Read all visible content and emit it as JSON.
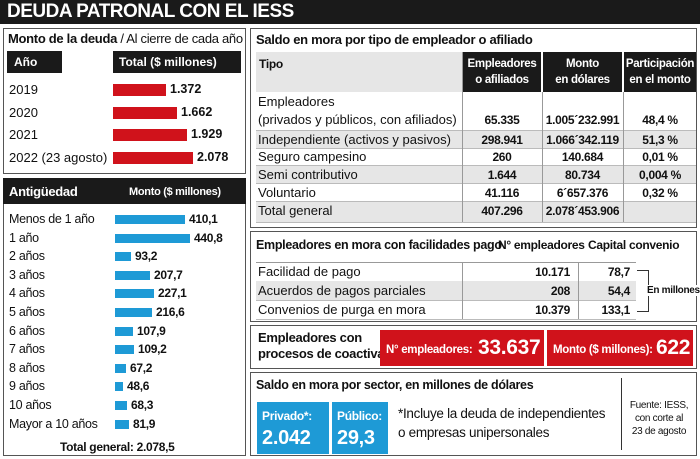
{
  "title": "DEUDA PATRONAL CON EL IESS",
  "monto": {
    "title_bold": "Monto de la deuda",
    "title_rest": " / Al cierre de cada año",
    "col_year": "Año",
    "col_total": "Total  ($ millones)",
    "rows": [
      {
        "label": "2019",
        "value": 1.372,
        "display": "1.372"
      },
      {
        "label": "2020",
        "value": 1.662,
        "display": "1.662"
      },
      {
        "label": "2021",
        "value": 1.929,
        "display": "1.929"
      },
      {
        "label": "2022 (23 agosto)",
        "value": 2.078,
        "display": "2.078"
      }
    ]
  },
  "antiguedad": {
    "col_label": "Antigüedad",
    "col_value": "Monto ($ millones)",
    "rows": [
      {
        "label": "Menos de 1 año",
        "value": 410.1,
        "display": "410,1"
      },
      {
        "label": "1 año",
        "value": 440.8,
        "display": "440,8"
      },
      {
        "label": "2 años",
        "value": 93.2,
        "display": "93,2"
      },
      {
        "label": "3 años",
        "value": 207.7,
        "display": "207,7"
      },
      {
        "label": "4 años",
        "value": 227.1,
        "display": "227,1"
      },
      {
        "label": "5 años",
        "value": 216.6,
        "display": "216,6"
      },
      {
        "label": "6 años",
        "value": 107.9,
        "display": "107,9"
      },
      {
        "label": "7 años",
        "value": 109.2,
        "display": "109,2"
      },
      {
        "label": "8 años",
        "value": 67.2,
        "display": "67,2"
      },
      {
        "label": "9 años",
        "value": 48.6,
        "display": "48,6"
      },
      {
        "label": "10 años",
        "value": 68.3,
        "display": "68,3"
      },
      {
        "label": "Mayor a 10 años",
        "value": 81.9,
        "display": "81,9"
      }
    ],
    "total": "Total general: 2.078,5"
  },
  "mora_tipo": {
    "title": "Saldo en mora por tipo de empleador o afiliado",
    "col_tipo": "Tipo",
    "col_emp": [
      "Empleadores",
      "o afiliados"
    ],
    "col_monto": [
      "Monto",
      "en dólares"
    ],
    "col_part": [
      "Participación",
      "en el monto"
    ],
    "rows": [
      {
        "label": "Empleadores",
        "label2": "(privados y públicos, con afiliados)",
        "emp": "65.335",
        "monto": "1.005´232.991",
        "part": "48,4 %"
      },
      {
        "label": "Independiente (activos y pasivos)",
        "emp": "298.941",
        "monto": "1.066´342.119",
        "part": "51,3 %"
      },
      {
        "label": "Seguro campesino",
        "emp": "260",
        "monto": "140.684",
        "part": "0,01 %"
      },
      {
        "label": "Semi contributivo",
        "emp": "1.644",
        "monto": "80.734",
        "part": "0,004 %"
      },
      {
        "label": "Voluntario",
        "emp": "41.116",
        "monto": "6´657.376",
        "part": "0,32 %"
      },
      {
        "label": "Total general",
        "emp": "407.296",
        "monto": "2.078´453.906",
        "part": ""
      }
    ]
  },
  "facilidades": {
    "title": "Empleadores en mora con facilidades pago",
    "col_emp": "N° empleadores",
    "col_cap": "Capital convenio",
    "rows": [
      {
        "label": "Facilidad de pago",
        "emp": "10.171",
        "cap": "78,7"
      },
      {
        "label": "Acuerdos de pagos parciales",
        "emp": "208",
        "cap": "54,4"
      },
      {
        "label": "Convenios de purga en mora",
        "emp": "10.379",
        "cap": "133,1"
      }
    ],
    "note": "En millones"
  },
  "coactiva": {
    "label1": "Empleadores con",
    "label2": "procesos de coactiva",
    "emp_label": "N° empleadores:",
    "emp_value": "33.637",
    "monto_label": "Monto ($ millones):",
    "monto_value": "622"
  },
  "sector": {
    "title": "Saldo en mora por sector, en millones de dólares",
    "privado_label": "Privado*:",
    "privado_value": "2.042",
    "publico_label": "Público:",
    "publico_value": "29,3",
    "note1": "*Incluye la deuda de independientes",
    "note2": "o empresas unipersonales"
  },
  "fuente": [
    "Fuente: IESS,",
    "con corte al",
    "23 de agosto"
  ],
  "colors": {
    "red": "#d0121b",
    "blue": "#1e9ad6",
    "dark": "#1a1a1a"
  },
  "chart_data": [
    {
      "type": "bar",
      "title": "Monto de la deuda",
      "categories": [
        "2019",
        "2020",
        "2021",
        "2022 (23 agosto)"
      ],
      "values": [
        1.372,
        1.662,
        1.929,
        2.078
      ],
      "ylabel": "Total  ($ millones)"
    },
    {
      "type": "bar",
      "title": "Antigüedad",
      "categories": [
        "Menos de 1 año",
        "1 año",
        "2 años",
        "3 años",
        "4 años",
        "5 años",
        "6 años",
        "7 años",
        "8 años",
        "9 años",
        "10 años",
        "Mayor a 10 años"
      ],
      "values": [
        410.1,
        440.8,
        93.2,
        207.7,
        227.1,
        216.6,
        107.9,
        109.2,
        67.2,
        48.6,
        68.3,
        81.9
      ],
      "ylabel": "Monto ($ millones)"
    }
  ]
}
